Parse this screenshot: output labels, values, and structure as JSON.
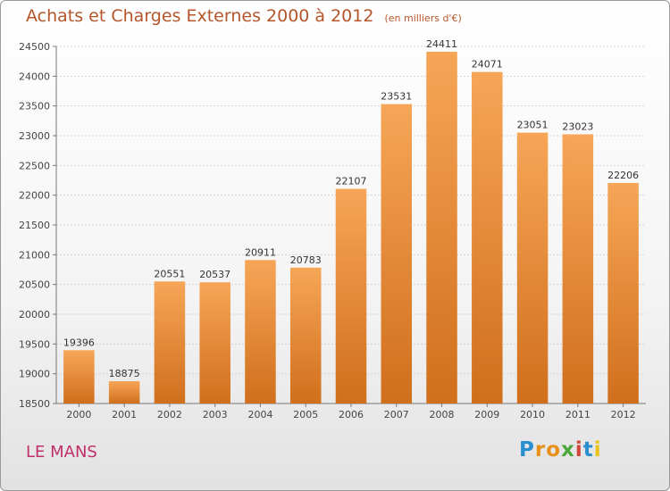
{
  "chart_data": {
    "type": "bar",
    "title": "Achats et Charges Externes 2000 à 2012",
    "subtitle": "(en milliers d'€)",
    "categories": [
      "2000",
      "2001",
      "2002",
      "2003",
      "2004",
      "2005",
      "2006",
      "2007",
      "2008",
      "2009",
      "2010",
      "2011",
      "2012"
    ],
    "values": [
      19396,
      18875,
      20551,
      20537,
      20911,
      20783,
      22107,
      23531,
      24411,
      24071,
      23051,
      23023,
      22206
    ],
    "ylim": [
      18500,
      24500
    ],
    "yticks": [
      18500,
      19000,
      19500,
      20000,
      20500,
      21000,
      21500,
      22000,
      22500,
      23000,
      23500,
      24000,
      24500
    ],
    "grid": true,
    "bar_color": "#f0913a"
  },
  "footer": {
    "city": "LE MANS",
    "logo_letters": [
      {
        "char": "P",
        "color": "#2a8fd0"
      },
      {
        "char": "r",
        "color": "#e8901a"
      },
      {
        "char": "o",
        "color": "#e8901a"
      },
      {
        "char": "x",
        "color": "#4aa83a"
      },
      {
        "char": "i",
        "color": "#d0463a"
      },
      {
        "char": "t",
        "color": "#2a8fd0"
      },
      {
        "char": "i",
        "color": "#e8c31a"
      }
    ]
  }
}
